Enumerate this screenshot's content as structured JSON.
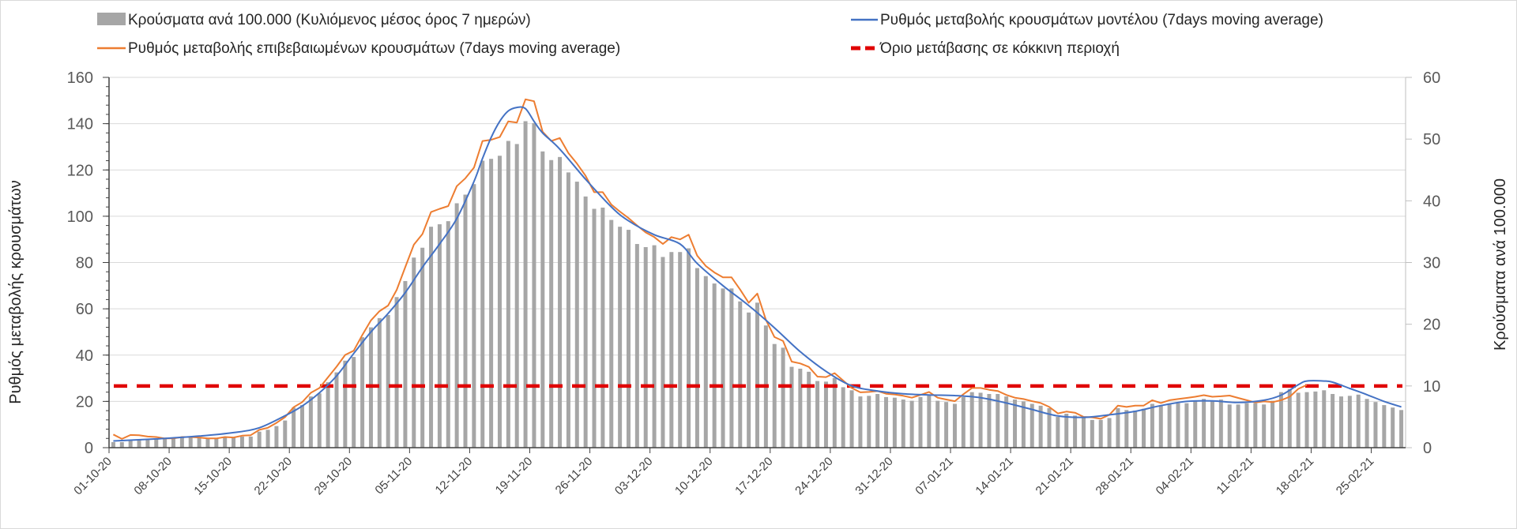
{
  "chart_data": {
    "type": "bar+line",
    "start_date": "01-10-20",
    "x_tick_labels": [
      "01-10-20",
      "08-10-20",
      "15-10-20",
      "22-10-20",
      "29-10-20",
      "05-11-20",
      "12-11-20",
      "19-11-20",
      "26-11-20",
      "03-12-20",
      "10-12-20",
      "17-12-20",
      "24-12-20",
      "31-12-20",
      "07-01-21",
      "14-01-21",
      "21-01-21",
      "28-01-21",
      "04-02-21",
      "11-02-21",
      "18-02-21",
      "25-02-21"
    ],
    "x_tick_step_days": 7,
    "y_left": {
      "label": "Ρυθμός μεταβολής κρουσμάτων",
      "range": [
        0,
        160
      ],
      "ticks": [
        0,
        20,
        40,
        60,
        80,
        100,
        120,
        140,
        160
      ]
    },
    "y_right": {
      "label": "Κρούσματα ανά 100.000",
      "range": [
        0,
        60
      ],
      "ticks": [
        0,
        10,
        20,
        30,
        40,
        50,
        60
      ]
    },
    "grid": true,
    "legend": {
      "placement": "top",
      "items": [
        {
          "key": "bars",
          "label": "Κρούσματα ανά 100.000 (Κυλιόμενος μέσος όρος 7 ημερών)"
        },
        {
          "key": "model",
          "label": "Ρυθμός μεταβολής κρουσμάτων μοντέλου (7days moving average)"
        },
        {
          "key": "confirmed",
          "label": "Ρυθμός μεταβολής επιβεβαιωμένων κρουσμάτων (7days moving average)"
        },
        {
          "key": "threshold",
          "label": "Όριο μετάβασης σε κόκκινη περιοχή"
        }
      ]
    },
    "series": {
      "bars": {
        "axis": "right",
        "color": "#a6a6a6",
        "values": [
          0.9,
          0.9,
          1.2,
          1.3,
          1.3,
          1.4,
          1.5,
          1.6,
          1.6,
          1.6,
          1.6,
          1.5,
          1.5,
          1.6,
          1.6,
          1.8,
          1.8,
          2.6,
          2.9,
          3.5,
          4.4,
          6.5,
          6.9,
          8.3,
          8.8,
          10.6,
          12.2,
          14.1,
          14.7,
          17.9,
          19.5,
          21.0,
          21.5,
          24.4,
          27.0,
          30.8,
          32.4,
          35.8,
          36.2,
          36.7,
          39.6,
          41.0,
          42.7,
          46.5,
          46.8,
          47.3,
          49.7,
          49.2,
          52.9,
          52.6,
          48.0,
          46.6,
          47.1,
          44.6,
          43.1,
          40.7,
          38.7,
          38.9,
          36.9,
          35.8,
          35.3,
          33.0,
          32.5,
          32.8,
          30.9,
          31.7,
          31.7,
          32.3,
          29.1,
          27.8,
          26.6,
          25.8,
          25.8,
          23.7,
          21.9,
          23.5,
          19.8,
          16.8,
          16.2,
          13.1,
          12.8,
          12.3,
          10.8,
          10.7,
          11.3,
          9.8,
          9.3,
          8.3,
          8.4,
          8.7,
          8.2,
          8.1,
          7.8,
          7.6,
          8.2,
          8.6,
          7.6,
          7.4,
          7.1,
          8.2,
          9.0,
          8.9,
          8.7,
          8.7,
          8.3,
          7.8,
          7.5,
          7.1,
          6.8,
          6.4,
          5.0,
          5.5,
          5.2,
          5.0,
          4.5,
          4.5,
          4.8,
          6.4,
          6.1,
          6.0,
          6.3,
          7.1,
          6.8,
          7.0,
          7.2,
          7.2,
          7.6,
          7.9,
          7.6,
          7.8,
          7.0,
          7.0,
          7.2,
          7.2,
          7.0,
          7.6,
          9.0,
          9.5,
          8.9,
          9.0,
          9.1,
          9.3,
          8.7,
          8.3,
          8.4,
          8.6,
          7.9,
          7.4,
          6.9,
          6.5,
          6.1
        ]
      },
      "confirmed": {
        "axis": "left",
        "color": "#ed7d31",
        "values": [
          5.7,
          3.8,
          5.5,
          5.4,
          4.8,
          4.6,
          4,
          4,
          4.6,
          4.6,
          4.4,
          4,
          4,
          4.6,
          4.4,
          5.2,
          5.4,
          7.7,
          8.6,
          10.7,
          13.2,
          17.5,
          19.7,
          23.7,
          25.8,
          30.4,
          35,
          40.1,
          41.9,
          48.7,
          55,
          59,
          61.4,
          68.2,
          78,
          87.7,
          92.3,
          101.8,
          103.2,
          104.4,
          113,
          116.4,
          121,
          132.5,
          133,
          134.2,
          141,
          140.5,
          150.5,
          149.7,
          136.5,
          132.5,
          133.8,
          127.3,
          122.7,
          117.5,
          110.4,
          110.4,
          105,
          102,
          99.2,
          96,
          93,
          91,
          88,
          91,
          90,
          92,
          83,
          78.5,
          75.7,
          73.6,
          73.6,
          68.3,
          62.6,
          66.6,
          55.2,
          47.8,
          46.1,
          37.2,
          36.4,
          34.9,
          30.7,
          30.5,
          32.2,
          29,
          25.8,
          23.9,
          24.1,
          24.5,
          23.3,
          23,
          22.4,
          21.6,
          22.8,
          24.1,
          21.6,
          20.8,
          20.1,
          23.1,
          25.8,
          25.8,
          25,
          24.5,
          22.8,
          21.6,
          21,
          20.1,
          19.3,
          17.6,
          14.8,
          15.6,
          15.1,
          13.3,
          13.1,
          12.5,
          14.2,
          18.2,
          17.6,
          18.2,
          18.2,
          20.5,
          19.3,
          20.5,
          21,
          21.5,
          22,
          22.7,
          22,
          22.2,
          22.5,
          21.5,
          20.5,
          19.5,
          20,
          19.7,
          20.5,
          22,
          25.4,
          27.1
        ]
      },
      "model": {
        "axis": "left",
        "color": "#4472c4",
        "days": [
          0,
          5,
          10,
          14,
          17,
          20,
          22,
          24,
          26,
          28,
          30,
          32,
          34,
          36,
          38,
          40,
          42,
          43,
          44,
          45,
          46,
          47,
          48,
          49,
          50,
          52,
          55,
          58,
          60,
          63,
          66,
          68,
          71,
          74,
          77,
          80,
          83,
          86,
          89,
          92,
          95,
          98,
          101,
          104,
          107,
          110,
          113,
          116,
          119,
          122,
          125,
          128,
          131,
          134,
          136,
          138,
          139,
          141,
          142,
          144,
          146,
          148,
          150
        ],
        "values": [
          2.9,
          3.8,
          5,
          6.5,
          8.6,
          13.8,
          18,
          23.7,
          31,
          40.7,
          50,
          58,
          67,
          78,
          88,
          99,
          115,
          125,
          134,
          141,
          145.5,
          147,
          146.5,
          141,
          136,
          129,
          116,
          104,
          98,
          92,
          88,
          79.6,
          70,
          61.4,
          51.8,
          41.5,
          33,
          26.7,
          24.5,
          23.3,
          22.8,
          22.5,
          21.6,
          19.3,
          16.5,
          13.7,
          13.1,
          14.2,
          15.7,
          18.2,
          20,
          20.2,
          19.5,
          20.5,
          22.7,
          27.2,
          28.8,
          28.8,
          28.3,
          25.6,
          22.9,
          20,
          17.6
        ]
      },
      "threshold": {
        "axis": "right",
        "color": "#e00000",
        "value": 10
      }
    }
  }
}
